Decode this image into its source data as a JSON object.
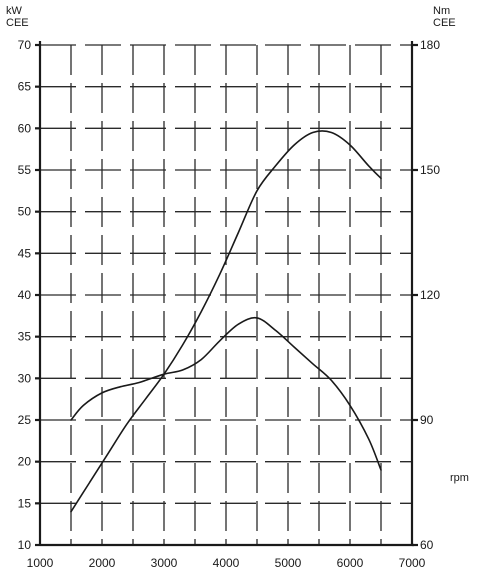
{
  "chart_data": {
    "type": "line",
    "title": "",
    "left_axis": {
      "unit_line1": "kW",
      "unit_line2": "CEE",
      "range": [
        10,
        70
      ],
      "ticks": [
        "10",
        "15",
        "20",
        "25",
        "30",
        "35",
        "40",
        "45",
        "50",
        "55",
        "60",
        "65",
        "70"
      ]
    },
    "right_axis": {
      "unit_line1": "Nm",
      "unit_line2": "CEE",
      "range": [
        60,
        180
      ],
      "ticks": [
        "60",
        "90",
        "120",
        "150",
        "180"
      ]
    },
    "x_axis": {
      "unit": "rpm",
      "range": [
        1000,
        7000
      ],
      "ticks": [
        "1000",
        "2000",
        "3000",
        "4000",
        "5000",
        "6000",
        "7000"
      ]
    },
    "grid": true,
    "series": [
      {
        "axis": "left",
        "x": [
          1500,
          1800,
          2100,
          2400,
          2700,
          3000,
          3300,
          3600,
          3900,
          4200,
          4500,
          4800,
          5100,
          5400,
          5700,
          6000,
          6300,
          6500
        ],
        "y": [
          14,
          17.5,
          21,
          24.5,
          27.5,
          30.5,
          34,
          38,
          42.5,
          47.5,
          52.5,
          55.5,
          58,
          59.5,
          59.5,
          58,
          55.5,
          54
        ]
      },
      {
        "axis": "right",
        "x": [
          1500,
          1700,
          2000,
          2300,
          2600,
          3000,
          3300,
          3600,
          3900,
          4200,
          4500,
          4800,
          5100,
          5400,
          5700,
          6000,
          6300,
          6500
        ],
        "y": [
          90,
          93.5,
          96.5,
          98,
          99,
          101,
          102,
          104.5,
          109,
          113,
          114.5,
          111.5,
          107.5,
          103.5,
          99.5,
          93.5,
          85.5,
          78
        ]
      }
    ]
  }
}
